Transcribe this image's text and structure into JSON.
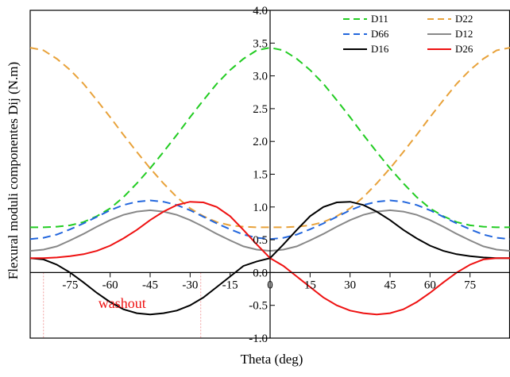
{
  "chart_data": {
    "type": "line",
    "title": "",
    "xlabel": "Theta (deg)",
    "ylabel": "Flexural moduli componentes Dij (N.m)",
    "xlim": [
      -90,
      90
    ],
    "ylim": [
      -1.0,
      4.0
    ],
    "x_ticks": [
      -75,
      -60,
      -45,
      -30,
      -15,
      0,
      15,
      30,
      45,
      60,
      75
    ],
    "x_tick_labels": [
      "-75",
      "-60",
      "-45",
      "-30",
      "-15",
      "0",
      "15",
      "30",
      "45",
      "60",
      "75"
    ],
    "y_ticks": [
      -1.0,
      -0.5,
      0.0,
      0.5,
      1.0,
      1.5,
      2.0,
      2.5,
      3.0,
      3.5,
      4.0
    ],
    "y_tick_labels": [
      "-1.0",
      "-0.5",
      "0.0",
      "0.5",
      "1.0",
      "1.5",
      "2.0",
      "2.5",
      "3.0",
      "3.5",
      "4.0"
    ],
    "grid": false,
    "legend_position": "top-right",
    "x": [
      -90,
      -85,
      -80,
      -75,
      -70,
      -65,
      -60,
      -55,
      -50,
      -45,
      -40,
      -35,
      -30,
      -25,
      -20,
      -15,
      -10,
      -5,
      0,
      5,
      10,
      15,
      20,
      25,
      30,
      35,
      40,
      45,
      50,
      55,
      60,
      65,
      70,
      75,
      80,
      85,
      90
    ],
    "series": [
      {
        "name": "D11",
        "color": "#22cc22",
        "dash": "dashed",
        "values": [
          0.69,
          0.69,
          0.7,
          0.72,
          0.77,
          0.86,
          0.98,
          1.15,
          1.36,
          1.59,
          1.84,
          2.1,
          2.37,
          2.63,
          2.88,
          3.09,
          3.26,
          3.39,
          3.43,
          3.39,
          3.26,
          3.09,
          2.88,
          2.63,
          2.37,
          2.1,
          1.84,
          1.59,
          1.36,
          1.15,
          0.98,
          0.86,
          0.77,
          0.72,
          0.7,
          0.69,
          0.69
        ]
      },
      {
        "name": "D22",
        "color": "#e8a23a",
        "dash": "dashed",
        "values": [
          3.43,
          3.39,
          3.26,
          3.09,
          2.88,
          2.63,
          2.37,
          2.1,
          1.84,
          1.59,
          1.36,
          1.15,
          0.98,
          0.86,
          0.77,
          0.72,
          0.7,
          0.69,
          0.69,
          0.69,
          0.7,
          0.72,
          0.77,
          0.86,
          0.98,
          1.15,
          1.36,
          1.59,
          1.84,
          2.1,
          2.37,
          2.63,
          2.88,
          3.09,
          3.26,
          3.39,
          3.43
        ]
      },
      {
        "name": "D66",
        "color": "#2266dd",
        "dash": "dashed",
        "values": [
          0.51,
          0.53,
          0.58,
          0.66,
          0.75,
          0.85,
          0.95,
          1.03,
          1.08,
          1.1,
          1.08,
          1.03,
          0.95,
          0.85,
          0.75,
          0.66,
          0.58,
          0.53,
          0.51,
          0.53,
          0.58,
          0.66,
          0.75,
          0.85,
          0.95,
          1.03,
          1.08,
          1.1,
          1.08,
          1.03,
          0.95,
          0.85,
          0.75,
          0.66,
          0.58,
          0.53,
          0.51
        ]
      },
      {
        "name": "D12",
        "color": "#888888",
        "dash": "solid",
        "values": [
          0.33,
          0.35,
          0.4,
          0.49,
          0.59,
          0.7,
          0.8,
          0.88,
          0.93,
          0.95,
          0.93,
          0.88,
          0.8,
          0.7,
          0.59,
          0.49,
          0.4,
          0.35,
          0.33,
          0.35,
          0.4,
          0.49,
          0.59,
          0.7,
          0.8,
          0.88,
          0.93,
          0.95,
          0.93,
          0.88,
          0.8,
          0.7,
          0.59,
          0.49,
          0.4,
          0.35,
          0.33
        ]
      },
      {
        "name": "D16",
        "color": "#000000",
        "dash": "solid",
        "values": [
          0.22,
          0.2,
          0.12,
          0.0,
          -0.15,
          -0.31,
          -0.45,
          -0.56,
          -0.62,
          -0.64,
          -0.62,
          -0.58,
          -0.5,
          -0.38,
          -0.22,
          -0.06,
          0.1,
          0.17,
          0.22,
          0.43,
          0.65,
          0.86,
          1.0,
          1.07,
          1.08,
          1.03,
          0.93,
          0.8,
          0.65,
          0.52,
          0.41,
          0.33,
          0.28,
          0.25,
          0.23,
          0.22,
          0.22
        ]
      },
      {
        "name": "D26",
        "color": "#ee1111",
        "dash": "solid",
        "values": [
          0.22,
          0.22,
          0.23,
          0.25,
          0.28,
          0.33,
          0.41,
          0.52,
          0.65,
          0.8,
          0.93,
          1.03,
          1.08,
          1.07,
          1.0,
          0.86,
          0.65,
          0.43,
          0.22,
          0.1,
          -0.06,
          -0.22,
          -0.38,
          -0.5,
          -0.58,
          -0.62,
          -0.64,
          -0.62,
          -0.56,
          -0.45,
          -0.31,
          -0.15,
          0.0,
          0.12,
          0.2,
          0.22,
          0.22
        ]
      }
    ],
    "annotation": {
      "text": "washout",
      "color": "#ee1111",
      "x_start": -85,
      "x_end": -26
    }
  }
}
